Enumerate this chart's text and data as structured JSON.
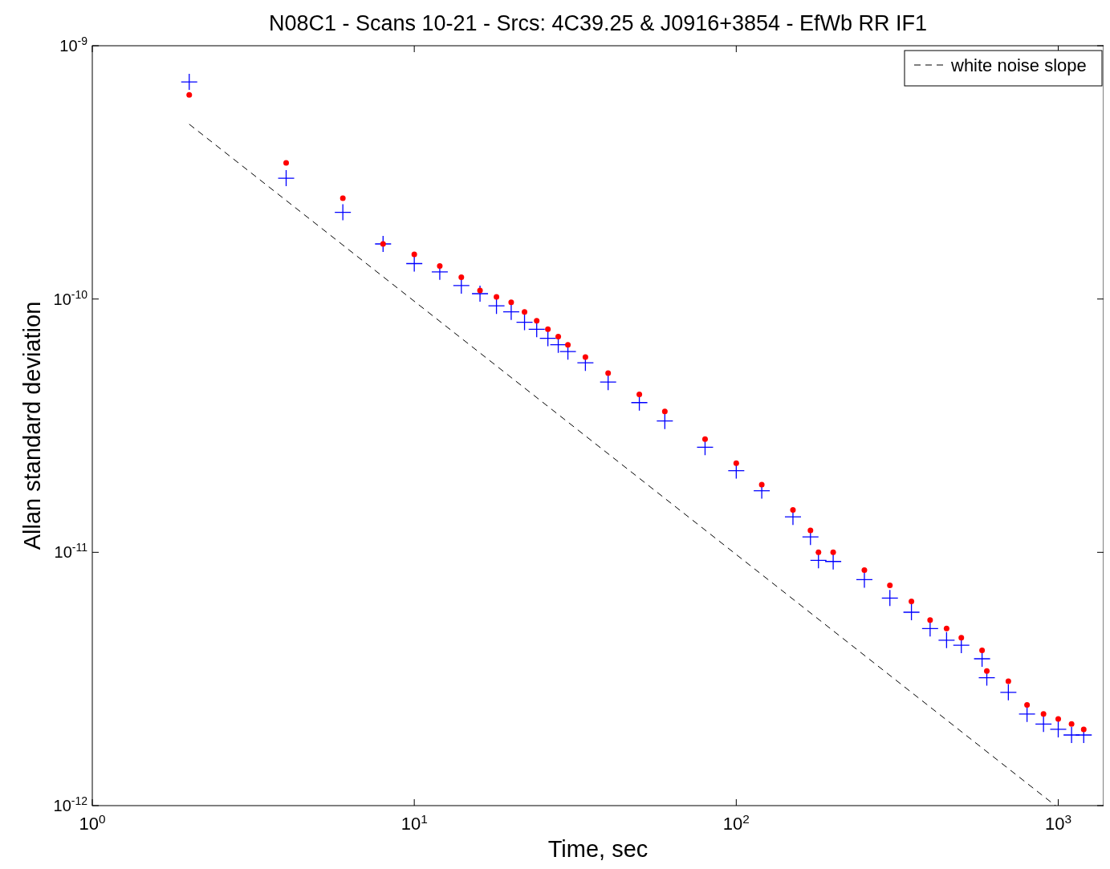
{
  "chart_data": {
    "type": "scatter",
    "title": "N08C1 - Scans 10-21 - Srcs: 4C39.25 & J0916+3854 - EfWb RR IF1",
    "xlabel": "Time, sec",
    "ylabel": "Allan standard deviation",
    "log": "xy",
    "xlim": [
      1,
      1383
    ],
    "ylim": [
      1e-12,
      1e-09
    ],
    "xticks": [
      {
        "value": 1,
        "label": "10$^{0}$"
      },
      {
        "value": 10,
        "label": "10$^{1}$"
      },
      {
        "value": 100,
        "label": "10$^{2}$"
      },
      {
        "value": 1000,
        "label": "10$^{3}$"
      }
    ],
    "yticks": [
      {
        "value": 1e-12,
        "label": "10$^{-12}$"
      },
      {
        "value": 1e-11,
        "label": "10$^{-11}$"
      },
      {
        "value": 1e-10,
        "label": "10$^{-10}$"
      },
      {
        "value": 1e-09,
        "label": "10$^{-9}$"
      }
    ],
    "grid": false,
    "legend": "top right",
    "x": [
      2,
      4,
      6,
      8,
      10,
      12,
      14,
      16,
      18,
      20,
      22,
      24,
      26,
      28,
      30,
      34,
      40,
      50,
      60,
      80,
      100,
      120,
      150,
      170,
      180,
      200,
      250,
      300,
      350,
      400,
      450,
      500,
      580,
      600,
      700,
      800,
      900,
      1000,
      1100,
      1200
    ],
    "series": [
      {
        "color": "#0000ff",
        "marker": "cross",
        "values": [
          7.2e-10,
          3e-10,
          2.2e-10,
          1.65e-10,
          1.38e-10,
          1.28e-10,
          1.13e-10,
          1.05e-10,
          9.4e-11,
          8.9e-11,
          8.1e-11,
          7.6e-11,
          7e-11,
          6.6e-11,
          6.2e-11,
          5.6e-11,
          4.7e-11,
          3.9e-11,
          3.3e-11,
          2.6e-11,
          2.1e-11,
          1.75e-11,
          1.38e-11,
          1.15e-11,
          9.3e-12,
          9.2e-12,
          7.8e-12,
          6.6e-12,
          5.8e-12,
          5e-12,
          4.5e-12,
          4.3e-12,
          3.8e-12,
          3.2e-12,
          2.8e-12,
          2.3e-12,
          2.1e-12,
          2e-12,
          1.9e-12,
          1.9e-12
        ]
      },
      {
        "color": "#ff0000",
        "marker": "circle",
        "values": [
          6.4e-10,
          3.45e-10,
          2.5e-10,
          1.65e-10,
          1.5e-10,
          1.35e-10,
          1.22e-10,
          1.08e-10,
          1.02e-10,
          9.7e-11,
          8.9e-11,
          8.2e-11,
          7.6e-11,
          7.1e-11,
          6.6e-11,
          5.9e-11,
          5.1e-11,
          4.2e-11,
          3.6e-11,
          2.8e-11,
          2.25e-11,
          1.85e-11,
          1.47e-11,
          1.22e-11,
          1e-11,
          1e-11,
          8.5e-12,
          7.4e-12,
          6.4e-12,
          5.4e-12,
          5e-12,
          4.6e-12,
          4.1e-12,
          3.4e-12,
          3.1e-12,
          2.5e-12,
          2.3e-12,
          2.2e-12,
          2.1e-12,
          2e-12
        ]
      },
      {
        "name": "white noise slope",
        "type": "line",
        "color": "#000000",
        "marker": "none",
        "line_style": "dashed",
        "x": [
          2,
          980
        ],
        "values": [
          4.9e-10,
          1e-12
        ]
      }
    ]
  }
}
